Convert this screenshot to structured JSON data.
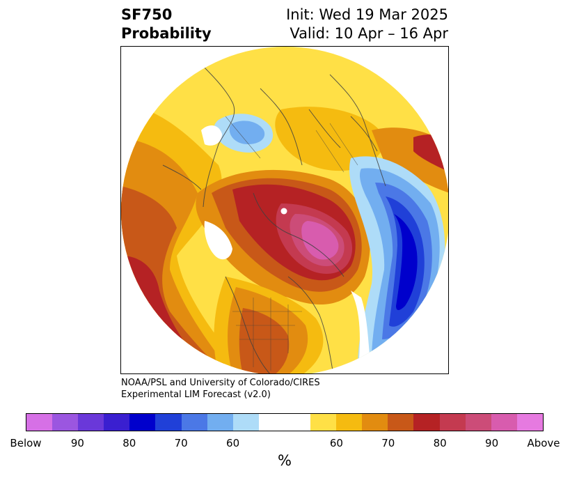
{
  "title": {
    "line1": "SF750",
    "line2": "Probability"
  },
  "init": {
    "line1": "Init: Wed 19 Mar 2025",
    "line2": "Valid: 10 Apr – 16 Apr"
  },
  "credit": {
    "line1": "NOAA/PSL and University of Colorado/CIRES",
    "line2": "Experimental LIM Forecast (v2.0)"
  },
  "colorbar": {
    "unit": "%",
    "colors": [
      "#d670e6",
      "#9b56e0",
      "#6a38d9",
      "#3a1fd0",
      "#0000cc",
      "#2040d8",
      "#4b78e6",
      "#72aef0",
      "#aedcf8",
      "#ffffff",
      "#ffffff",
      "#ffe046",
      "#f5bb10",
      "#e28c10",
      "#c85818",
      "#b52224",
      "#c43a50",
      "#cc4c78",
      "#d85cae",
      "#e67ae0"
    ],
    "ticks": [
      "Below",
      "90",
      "80",
      "70",
      "60",
      "60",
      "70",
      "80",
      "90",
      "Above"
    ]
  }
}
